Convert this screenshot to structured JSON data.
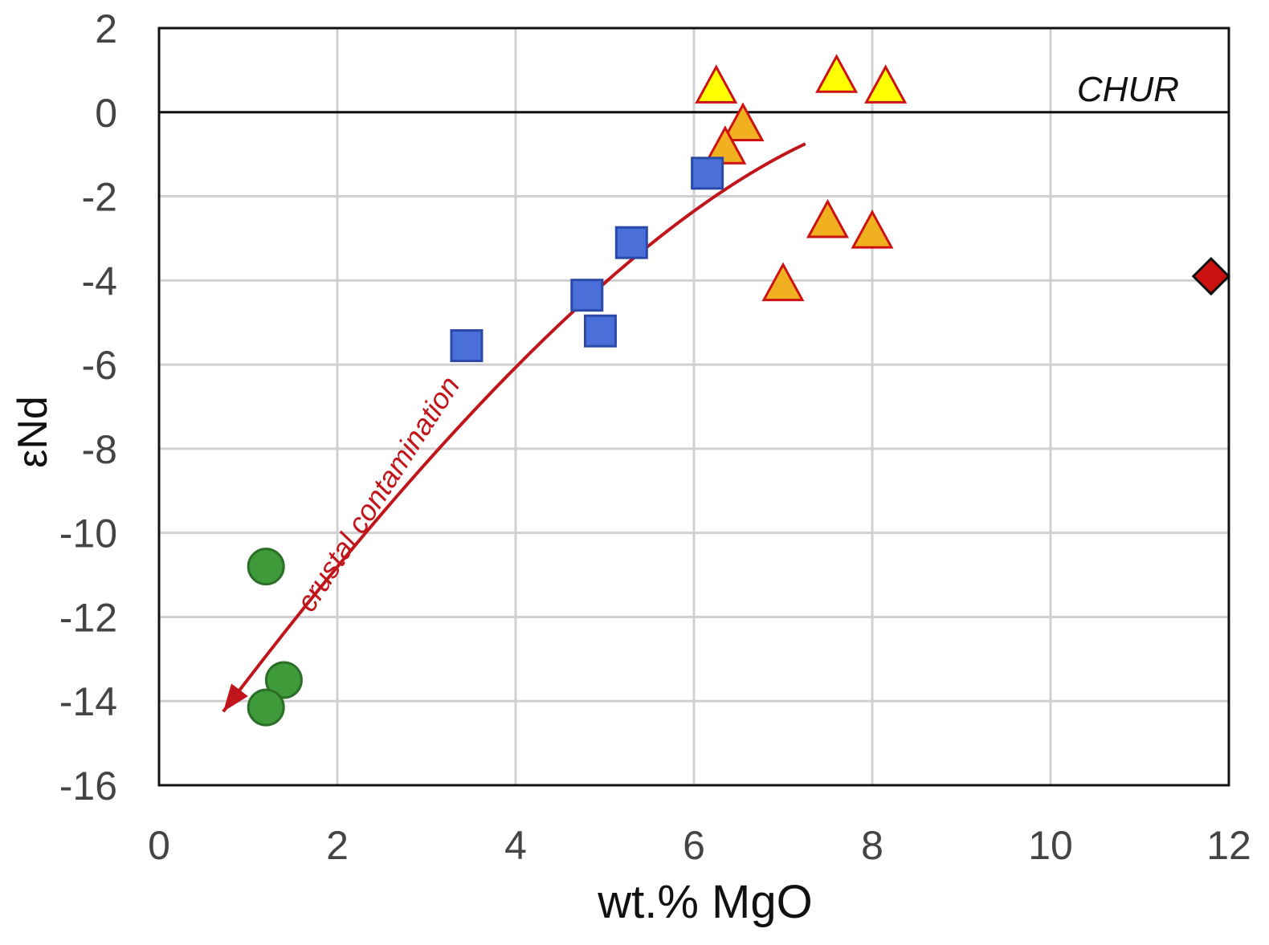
{
  "chart_data": {
    "type": "scatter",
    "xlabel": "wt.% MgO",
    "ylabel": "εNd",
    "xlim": [
      0,
      12
    ],
    "ylim": [
      -16,
      2
    ],
    "xticks": [
      0,
      2,
      4,
      6,
      8,
      10,
      12
    ],
    "yticks": [
      2,
      0,
      -2,
      -4,
      -6,
      -8,
      -10,
      -12,
      -14,
      -16
    ],
    "grid": true,
    "reference_line": {
      "y": 0,
      "label": "CHUR"
    },
    "annotation": {
      "text": "crustal contamination",
      "color": "#c0161b"
    },
    "series": [
      {
        "marker": "triangle",
        "fill": "#ffff00",
        "stroke": "#cc1111",
        "points": [
          [
            6.25,
            0.6
          ],
          [
            7.6,
            0.85
          ],
          [
            8.15,
            0.6
          ]
        ]
      },
      {
        "marker": "triangle",
        "fill": "#f0b020",
        "stroke": "#cc1111",
        "points": [
          [
            6.55,
            -0.3
          ],
          [
            6.35,
            -0.85
          ],
          [
            7.5,
            -2.6
          ],
          [
            8.0,
            -2.85
          ],
          [
            7.0,
            -4.1
          ]
        ]
      },
      {
        "marker": "square",
        "fill": "#4a6fd8",
        "stroke": "#2b4aa8",
        "points": [
          [
            6.15,
            -1.45
          ],
          [
            5.3,
            -3.1
          ],
          [
            4.8,
            -4.35
          ],
          [
            4.95,
            -5.2
          ],
          [
            3.45,
            -5.55
          ]
        ]
      },
      {
        "marker": "circle",
        "fill": "#3f9a3a",
        "stroke": "#2b6e28",
        "points": [
          [
            1.2,
            -10.8
          ],
          [
            1.4,
            -13.5
          ],
          [
            1.2,
            -14.15
          ]
        ]
      },
      {
        "marker": "diamond",
        "fill": "#cc1111",
        "stroke": "#111111",
        "points": [
          [
            11.8,
            -3.9
          ]
        ]
      }
    ]
  }
}
